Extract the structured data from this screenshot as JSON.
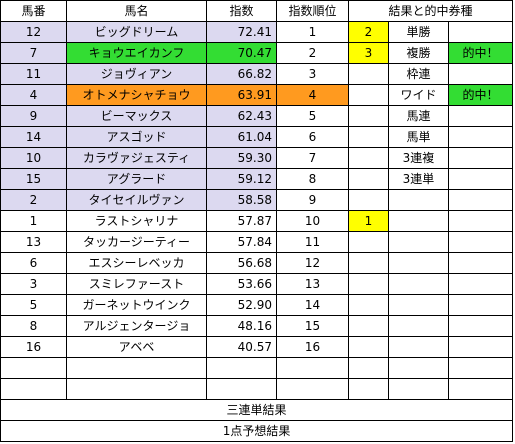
{
  "headers": {
    "num": "馬番",
    "name": "馬名",
    "index": "指数",
    "rank": "指数順位",
    "result": "結果と的中券種"
  },
  "rows": [
    {
      "num": "12",
      "name": "ビッグドリーム",
      "index": "72.41",
      "rank": "1",
      "result_pos": "2",
      "bet": "単勝",
      "hit": ""
    },
    {
      "num": "7",
      "name": "キョウエイカンフ",
      "index": "70.47",
      "rank": "2",
      "result_pos": "3",
      "bet": "複勝",
      "hit": "的中！"
    },
    {
      "num": "11",
      "name": "ジョヴィアン",
      "index": "66.82",
      "rank": "3",
      "result_pos": "",
      "bet": "枠連",
      "hit": ""
    },
    {
      "num": "4",
      "name": "オトメナシャチョウ",
      "index": "63.91",
      "rank": "4",
      "result_pos": "",
      "bet": "ワイド",
      "hit": "的中！"
    },
    {
      "num": "9",
      "name": "ビーマックス",
      "index": "62.43",
      "rank": "5",
      "result_pos": "",
      "bet": "馬連",
      "hit": ""
    },
    {
      "num": "14",
      "name": "アスゴッド",
      "index": "61.04",
      "rank": "6",
      "result_pos": "",
      "bet": "馬単",
      "hit": ""
    },
    {
      "num": "10",
      "name": "カラヴァジェスティ",
      "index": "59.30",
      "rank": "7",
      "result_pos": "",
      "bet": "3連複",
      "hit": ""
    },
    {
      "num": "15",
      "name": "アグラード",
      "index": "59.12",
      "rank": "8",
      "result_pos": "",
      "bet": "3連単",
      "hit": ""
    },
    {
      "num": "2",
      "name": "タイセイルヴァン",
      "index": "58.58",
      "rank": "9",
      "result_pos": "",
      "bet": "",
      "hit": ""
    },
    {
      "num": "1",
      "name": "ラストシャリナ",
      "index": "57.87",
      "rank": "10",
      "result_pos": "1",
      "bet": "",
      "hit": ""
    },
    {
      "num": "13",
      "name": "タッカージーティー",
      "index": "57.84",
      "rank": "11",
      "result_pos": "",
      "bet": "",
      "hit": ""
    },
    {
      "num": "6",
      "name": "エスシーレベッカ",
      "index": "56.68",
      "rank": "12",
      "result_pos": "",
      "bet": "",
      "hit": ""
    },
    {
      "num": "3",
      "name": "スミレファースト",
      "index": "53.66",
      "rank": "13",
      "result_pos": "",
      "bet": "",
      "hit": ""
    },
    {
      "num": "5",
      "name": "ガーネットウインク",
      "index": "52.90",
      "rank": "14",
      "result_pos": "",
      "bet": "",
      "hit": ""
    },
    {
      "num": "8",
      "name": "アルジェンタージョ",
      "index": "48.16",
      "rank": "15",
      "result_pos": "",
      "bet": "",
      "hit": ""
    },
    {
      "num": "16",
      "name": "アベベ",
      "index": "40.57",
      "rank": "16",
      "result_pos": "",
      "bet": "",
      "hit": ""
    },
    {
      "num": "",
      "name": "",
      "index": "",
      "rank": "",
      "result_pos": "",
      "bet": "",
      "hit": ""
    },
    {
      "num": "",
      "name": "",
      "index": "",
      "rank": "",
      "result_pos": "",
      "bet": "",
      "hit": ""
    }
  ],
  "footer": {
    "line1": "三連単結果",
    "line2": "1点予想結果"
  },
  "colors": {
    "lavender": "#dcd9f0",
    "green": "#33dd33",
    "orange": "#ff9a1f",
    "yellow": "#ffff00"
  }
}
